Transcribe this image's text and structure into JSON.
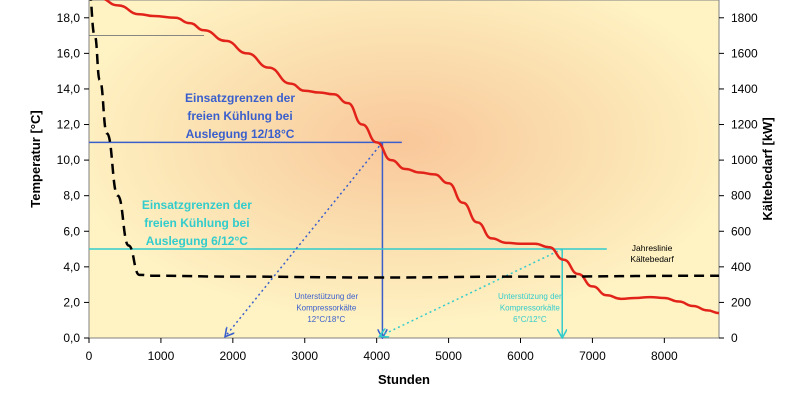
{
  "chart_data": {
    "type": "line",
    "xlabel": "Stunden",
    "ylabel_left": "Temperatur [°C]",
    "ylabel_right": "Kältebedarf [kW]",
    "xlim": [
      0,
      8760
    ],
    "ylim_left": [
      0,
      19
    ],
    "ylim_right": [
      0,
      1900
    ],
    "x_ticks": [
      0,
      1000,
      2000,
      3000,
      4000,
      5000,
      6000,
      7000,
      8000
    ],
    "x_tick_labels": [
      "0",
      "1000",
      "2000",
      "3000",
      "4000",
      "5000",
      "6000",
      "7000",
      "8000"
    ],
    "y_left_ticks": [
      0,
      2,
      4,
      6,
      8,
      10,
      12,
      14,
      16,
      18
    ],
    "y_left_tick_labels": [
      "0,0",
      "2,0",
      "4,0",
      "6,0",
      "8,0",
      "10,0",
      "12,0",
      "14,0",
      "16,0",
      "18,0"
    ],
    "y_right_ticks": [
      0,
      200,
      400,
      600,
      800,
      1000,
      1200,
      1400,
      1600,
      1800
    ],
    "y_right_tick_labels": [
      "0",
      "200",
      "400",
      "600",
      "800",
      "1000",
      "1200",
      "1400",
      "1600",
      "1800"
    ],
    "grid": false,
    "series": [
      {
        "axis": "left",
        "color": "#e2231a",
        "style": "solid",
        "x": [
          0,
          150,
          400,
          700,
          900,
          1200,
          1400,
          1600,
          1900,
          2200,
          2500,
          2800,
          3000,
          3200,
          3400,
          3600,
          3800,
          4000,
          4200,
          4400,
          4600,
          4800,
          5000,
          5200,
          5400,
          5600,
          5800,
          6000,
          6200,
          6400,
          6600,
          6800,
          7000,
          7200,
          7400,
          7600,
          7800,
          8000,
          8200,
          8400,
          8600,
          8760
        ],
        "y": [
          19.3,
          19.1,
          18.7,
          18.2,
          18.1,
          18.0,
          17.7,
          17.3,
          16.7,
          16.0,
          15.2,
          14.3,
          13.9,
          13.8,
          13.7,
          13.2,
          12.0,
          11.0,
          10.0,
          9.5,
          9.3,
          9.2,
          8.7,
          7.6,
          6.5,
          5.6,
          5.35,
          5.3,
          5.3,
          5.1,
          4.4,
          3.6,
          2.9,
          2.4,
          2.2,
          2.25,
          2.3,
          2.25,
          2.05,
          1.8,
          1.55,
          1.4
        ]
      },
      {
        "axis": "left",
        "color": "#000000",
        "style": "dashed",
        "x": [
          0,
          80,
          150,
          250,
          400,
          550,
          700,
          900,
          2000,
          4000,
          6000,
          8760
        ],
        "y": [
          19.5,
          17.0,
          14.5,
          11.5,
          8.0,
          5.2,
          3.55,
          3.5,
          3.45,
          3.4,
          3.45,
          3.5
        ]
      }
    ],
    "annotations": {
      "upper_label": [
        "Einsatzgrenzen der",
        "freien Kühlung bei",
        "Auslegung 12/18°C"
      ],
      "upper_label_color": "#3a5fcd",
      "lower_label": [
        "Einsatzgrenzen der",
        "freien Kühlung bei",
        "Auslegung 6/12°C"
      ],
      "lower_label_color": "#33cccc",
      "support_12_18": [
        "Unterstützung der",
        "Kompressorkälte",
        "12°C/18°C"
      ],
      "support_6_12": [
        "Unterstützung der",
        "Kompressorkälte",
        "6°C/12°C"
      ],
      "annual_line": [
        "Jahreslinie",
        "Kältebedarf"
      ],
      "limit_12_18": {
        "y": 11.0,
        "x": 4080,
        "line_xmax": 4350,
        "arrow_from_x": 1900
      },
      "limit_6_12": {
        "y": 5.0,
        "x": 6580,
        "line_xmax": 7200,
        "arrow_from_x": 4050
      },
      "helper_line_y": 17.0
    }
  }
}
